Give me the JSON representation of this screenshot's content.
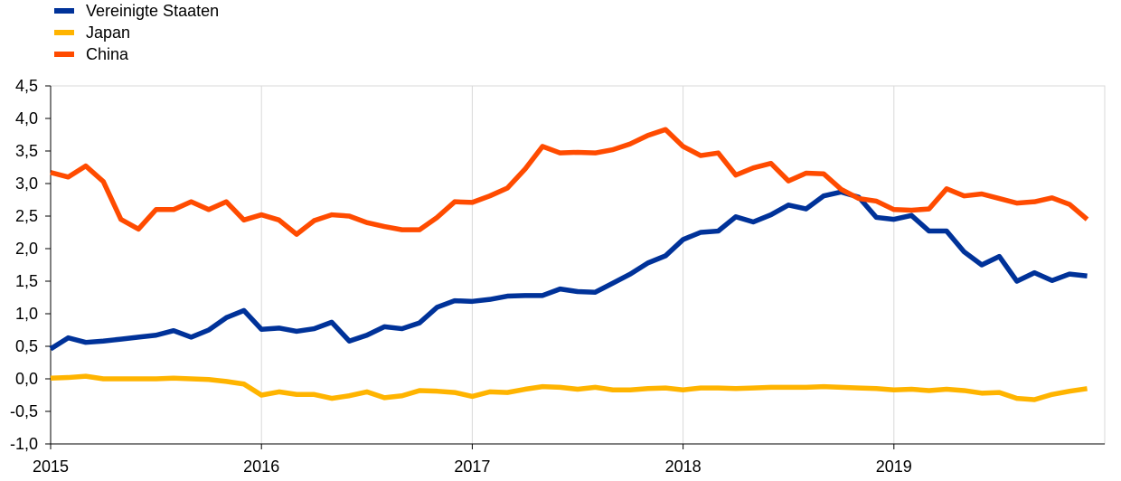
{
  "chart_data": {
    "type": "line",
    "title": "",
    "xlabel": "",
    "ylabel": "",
    "ylim": [
      -1.0,
      4.5
    ],
    "yticks": [
      {
        "value": -1.0,
        "label": "-1,0"
      },
      {
        "value": -0.5,
        "label": "-0,5"
      },
      {
        "value": 0.0,
        "label": "0,0"
      },
      {
        "value": 0.5,
        "label": "0,5"
      },
      {
        "value": 1.0,
        "label": "1,0"
      },
      {
        "value": 1.5,
        "label": "1,5"
      },
      {
        "value": 2.0,
        "label": "2,0"
      },
      {
        "value": 2.5,
        "label": "2,5"
      },
      {
        "value": 3.0,
        "label": "3,0"
      },
      {
        "value": 3.5,
        "label": "3,5"
      },
      {
        "value": 4.0,
        "label": "4,0"
      },
      {
        "value": 4.5,
        "label": "4,5"
      }
    ],
    "xticks": [
      "2015",
      "2016",
      "2017",
      "2018",
      "2019"
    ],
    "x_start": "2015-01",
    "x_end": "2019-12",
    "grid": "vertical",
    "legend_position": "top-left",
    "series": [
      {
        "name": "Vereinigte Staaten",
        "color": "#003299",
        "values": [
          0.46,
          0.63,
          0.56,
          0.58,
          0.61,
          0.64,
          0.67,
          0.74,
          0.64,
          0.75,
          0.94,
          1.05,
          0.76,
          0.78,
          0.73,
          0.77,
          0.87,
          0.58,
          0.67,
          0.8,
          0.77,
          0.86,
          1.1,
          1.2,
          1.19,
          1.22,
          1.27,
          1.28,
          1.28,
          1.38,
          1.34,
          1.33,
          1.47,
          1.61,
          1.78,
          1.89,
          2.14,
          2.25,
          2.27,
          2.49,
          2.41,
          2.52,
          2.67,
          2.61,
          2.81,
          2.87,
          2.79,
          2.48,
          2.45,
          2.51,
          2.27,
          2.27,
          1.95,
          1.75,
          1.88,
          1.5,
          1.63,
          1.51,
          1.61,
          1.58
        ]
      },
      {
        "name": "Japan",
        "color": "#FFB400",
        "values": [
          0.01,
          0.02,
          0.04,
          0.0,
          0.0,
          0.0,
          0.0,
          0.01,
          0.0,
          -0.01,
          -0.04,
          -0.08,
          -0.25,
          -0.2,
          -0.24,
          -0.24,
          -0.3,
          -0.26,
          -0.2,
          -0.29,
          -0.26,
          -0.18,
          -0.19,
          -0.21,
          -0.27,
          -0.2,
          -0.21,
          -0.16,
          -0.12,
          -0.13,
          -0.16,
          -0.13,
          -0.17,
          -0.17,
          -0.15,
          -0.14,
          -0.17,
          -0.14,
          -0.14,
          -0.15,
          -0.14,
          -0.13,
          -0.13,
          -0.13,
          -0.12,
          -0.13,
          -0.14,
          -0.15,
          -0.17,
          -0.16,
          -0.18,
          -0.16,
          -0.18,
          -0.22,
          -0.21,
          -0.3,
          -0.32,
          -0.24,
          -0.19,
          -0.15
        ]
      },
      {
        "name": "China",
        "color": "#FF4B00",
        "values": [
          3.17,
          3.1,
          3.27,
          3.03,
          2.45,
          2.3,
          2.6,
          2.6,
          2.72,
          2.6,
          2.72,
          2.44,
          2.52,
          2.44,
          2.22,
          2.43,
          2.52,
          2.5,
          2.4,
          2.34,
          2.29,
          2.29,
          2.48,
          2.72,
          2.71,
          2.81,
          2.93,
          3.22,
          3.57,
          3.47,
          3.48,
          3.47,
          3.52,
          3.61,
          3.74,
          3.83,
          3.57,
          3.43,
          3.47,
          3.13,
          3.24,
          3.31,
          3.04,
          3.16,
          3.15,
          2.91,
          2.77,
          2.73,
          2.6,
          2.59,
          2.61,
          2.92,
          2.81,
          2.84,
          2.77,
          2.7,
          2.72,
          2.78,
          2.68,
          2.45
        ]
      }
    ]
  }
}
